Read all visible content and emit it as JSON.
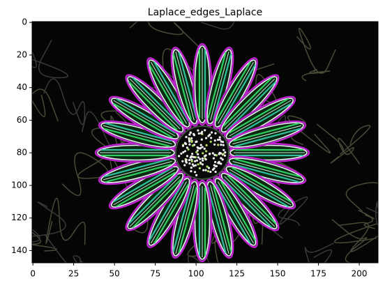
{
  "chart_data": {
    "type": "image",
    "title": "Laplace_edges_Laplace",
    "xlim": [
      -0.5,
      211.5
    ],
    "ylim": [
      147.5,
      -0.5
    ],
    "xticks": [
      0,
      25,
      50,
      75,
      100,
      125,
      150,
      175,
      200
    ],
    "yticks": [
      0,
      20,
      40,
      60,
      80,
      100,
      120,
      140
    ]
  }
}
